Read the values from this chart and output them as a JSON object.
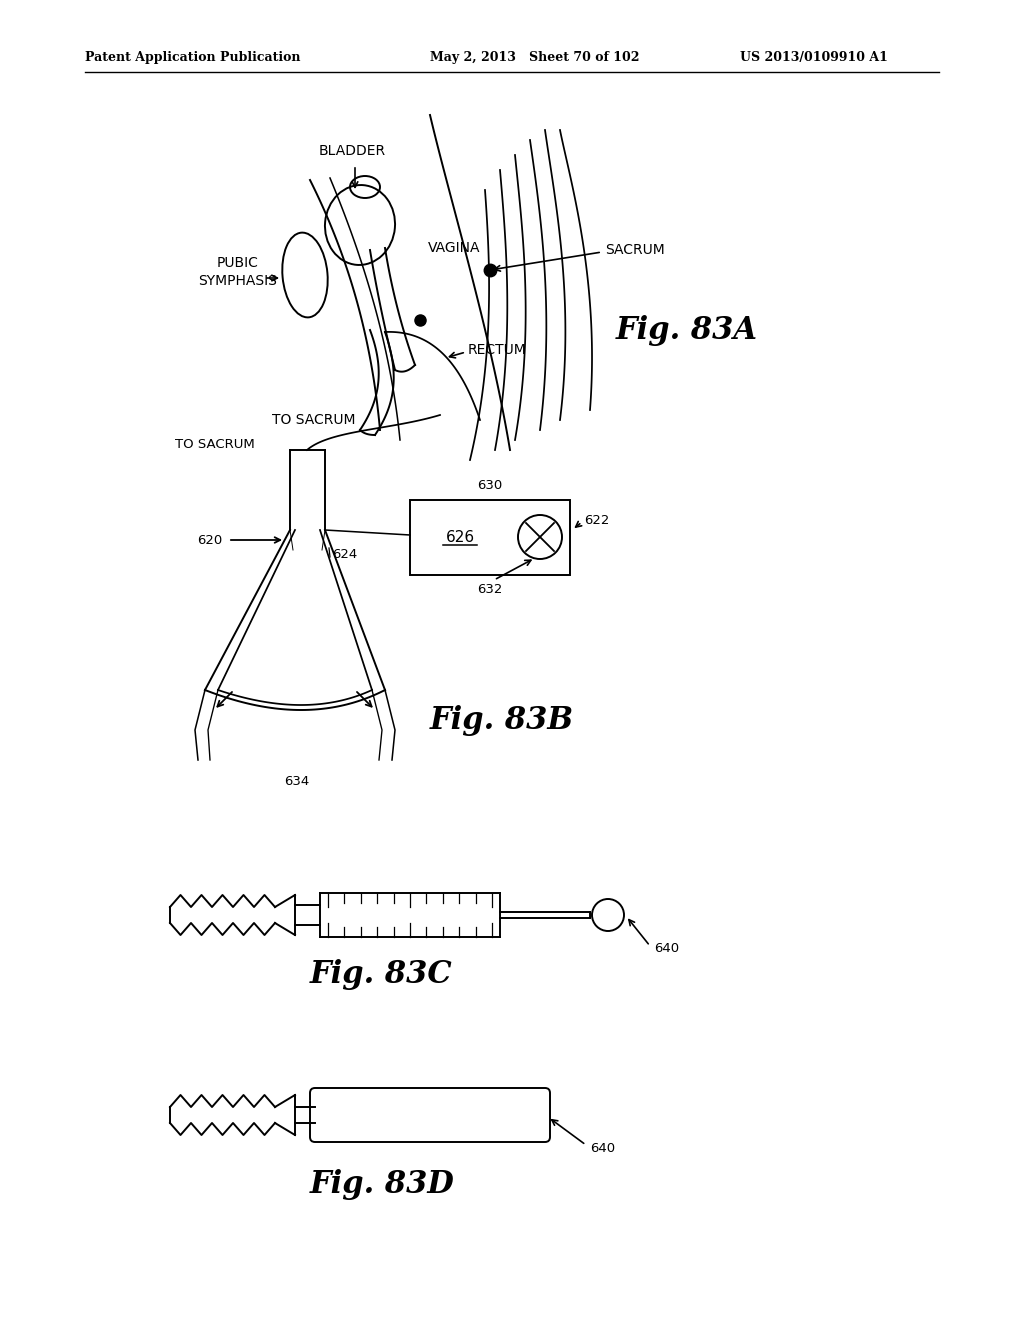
{
  "bg_color": "#ffffff",
  "header_left": "Patent Application Publication",
  "header_mid": "May 2, 2013   Sheet 70 of 102",
  "header_right": "US 2013/0109910 A1",
  "fig83A_label": "Fig. 83A",
  "fig83B_label": "Fig. 83B",
  "fig83C_label": "Fig. 83C",
  "fig83D_label": "Fig. 83D"
}
